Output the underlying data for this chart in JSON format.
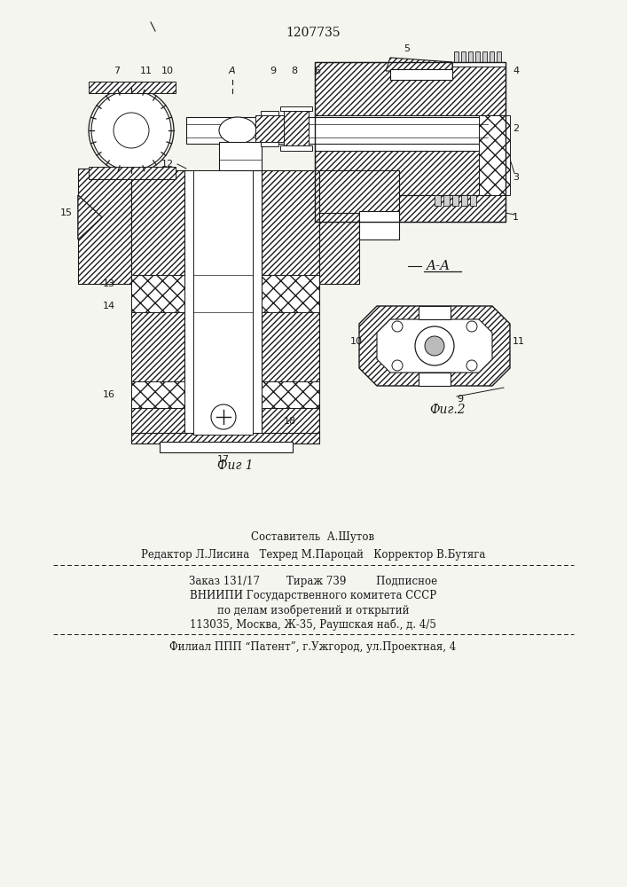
{
  "patent_number": "1207735",
  "fig1_caption": "Фиг 1",
  "fig2_caption": "Фиг.2",
  "section_label": "A-A",
  "staff_line1": "Составитель  А.Шутов",
  "staff_line2": "Редактор Л.Лисина   Техред М.Пароцай   Корректор В.Бутяга",
  "order_line": "Заказ 131/17        Тираж 739         Подписное",
  "vniip_line1": "ВНИИПИ Государственного комитета СССР",
  "vniip_line2": "по делам изобретений и открытий",
  "vniip_line3": "113035, Москва, Ж-35, Раушская наб., д. 4/5",
  "filial_line": "Филиал ППП “Патент”, г.Ужгород, ул.Проектная, 4",
  "bg_color": "#f5f5f0",
  "line_color": "#1a1a1a",
  "hatch_color": "#555555"
}
